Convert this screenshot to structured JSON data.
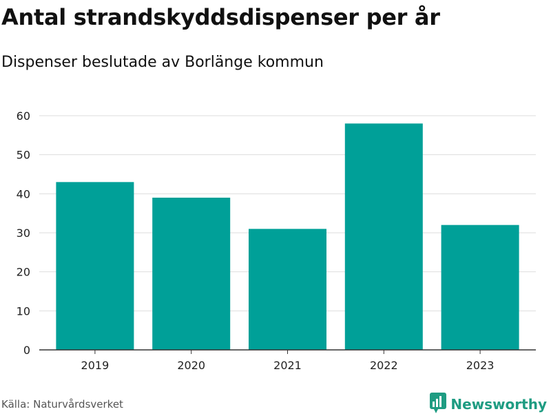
{
  "chart_data": {
    "type": "bar",
    "title": "Antal strandskyddsdispenser per år",
    "subtitle": "Dispenser beslutade av Borlänge kommun",
    "categories": [
      "2019",
      "2020",
      "2021",
      "2022",
      "2023"
    ],
    "values": [
      43,
      39,
      31,
      58,
      32
    ],
    "yticks": [
      "0",
      "10",
      "20",
      "30",
      "40",
      "50",
      "60"
    ],
    "ylim": [
      0,
      60
    ],
    "xlabel": "",
    "ylabel": "",
    "grid": true,
    "bar_color": "#00a098"
  },
  "footer": {
    "source": "Källa: Naturvårdsverket",
    "brand": "Newsworthy",
    "brand_icon": "newsworthy-logo-icon",
    "brand_color": "#1e9c82"
  }
}
